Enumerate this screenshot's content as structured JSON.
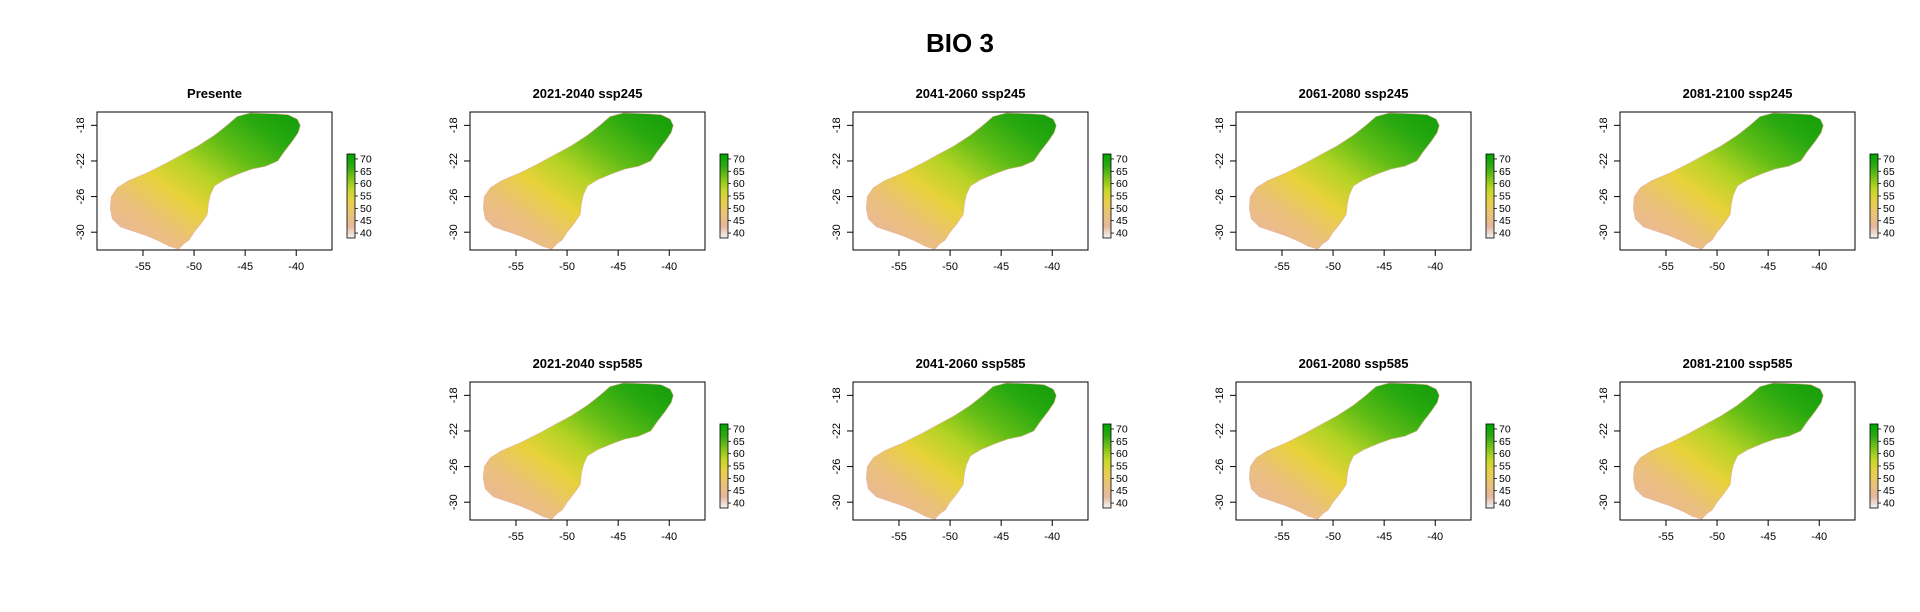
{
  "title": "BIO 3",
  "panels": [
    {
      "title": "Presente"
    },
    {
      "title": "2021-2040 ssp245"
    },
    {
      "title": "2041-2060 ssp245"
    },
    {
      "title": "2061-2080 ssp245"
    },
    {
      "title": "2081-2100 ssp245"
    },
    {
      "title": "2021-2040 ssp585"
    },
    {
      "title": "2041-2060 ssp585"
    },
    {
      "title": "2061-2080 ssp585"
    },
    {
      "title": "2081-2100 ssp585"
    }
  ],
  "x_axis": {
    "ticks": [
      -55,
      -50,
      -45,
      -40
    ],
    "range": [
      -59.5,
      -36.5
    ]
  },
  "y_axis": {
    "ticks": [
      -18,
      -22,
      -26,
      -30
    ],
    "range": [
      -32,
      -16.5
    ]
  },
  "legend": {
    "ticks": [
      70,
      65,
      60,
      55,
      50,
      45,
      40
    ],
    "range": [
      38,
      72
    ],
    "colors": [
      "#f2f2f2",
      "#e5b89c",
      "#e9c37a",
      "#e8d04b",
      "#c8d62a",
      "#7fc31a",
      "#2ca812",
      "#00a600"
    ]
  },
  "region_color_note": "terrain colors: low values salmon/pink in south-west, high values green in north-east"
}
